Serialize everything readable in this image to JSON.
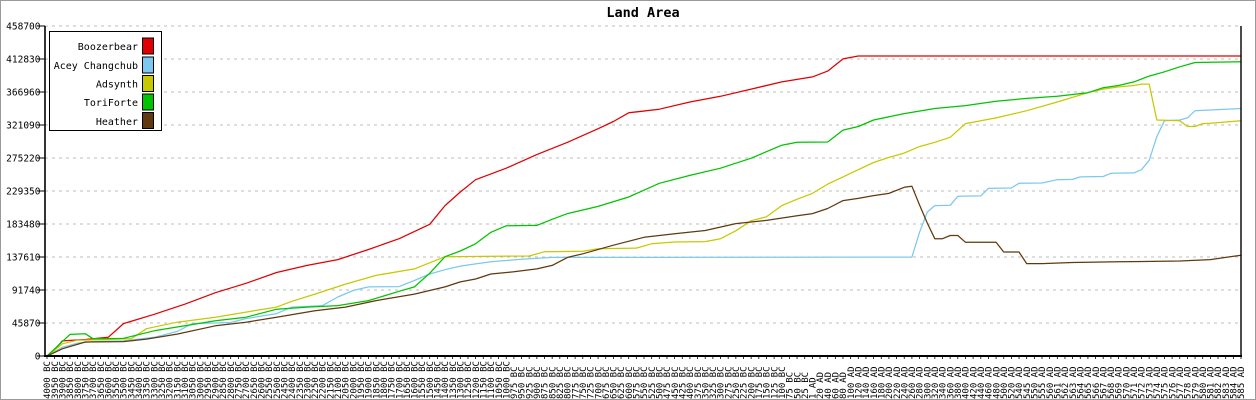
{
  "frame": {
    "background": "#ffffff",
    "border_color": "#9b9b9b"
  },
  "chart_data": {
    "type": "line",
    "title": "Land Area",
    "xlabel": "",
    "ylabel": "",
    "grid": true,
    "grid_color": "#bdbdbd",
    "legend_position": "top-left",
    "ylim": [
      0,
      458700
    ],
    "y_ticks": [
      0,
      45870,
      91740,
      137610,
      183480,
      229350,
      275220,
      321090,
      366960,
      412830,
      458700
    ],
    "x_tick_labels": [
      "4000 BC",
      "3950 BC",
      "3900 BC",
      "3850 BC",
      "3800 BC",
      "3750 BC",
      "3700 BC",
      "3650 BC",
      "3600 BC",
      "3550 BC",
      "3500 BC",
      "3450 BC",
      "3400 BC",
      "3350 BC",
      "3300 BC",
      "3250 BC",
      "3200 BC",
      "3150 BC",
      "3100 BC",
      "3050 BC",
      "3000 BC",
      "2950 BC",
      "2900 BC",
      "2850 BC",
      "2800 BC",
      "2750 BC",
      "2700 BC",
      "2650 BC",
      "2600 BC",
      "2550 BC",
      "2500 BC",
      "2450 BC",
      "2400 BC",
      "2350 BC",
      "2300 BC",
      "2250 BC",
      "2200 BC",
      "2150 BC",
      "2100 BC",
      "2050 BC",
      "2000 BC",
      "1950 BC",
      "1900 BC",
      "1850 BC",
      "1800 BC",
      "1750 BC",
      "1700 BC",
      "1650 BC",
      "1600 BC",
      "1550 BC",
      "1500 BC",
      "1450 BC",
      "1400 BC",
      "1350 BC",
      "1300 BC",
      "1250 BC",
      "1200 BC",
      "1150 BC",
      "1100 BC",
      "1050 BC",
      "1000 BC",
      "975 BC",
      "950 BC",
      "925 BC",
      "900 BC",
      "875 BC",
      "850 BC",
      "825 BC",
      "800 BC",
      "775 BC",
      "750 BC",
      "725 BC",
      "700 BC",
      "675 BC",
      "650 BC",
      "625 BC",
      "600 BC",
      "575 BC",
      "550 BC",
      "525 BC",
      "500 BC",
      "475 BC",
      "450 BC",
      "425 BC",
      "400 BC",
      "375 BC",
      "350 BC",
      "325 BC",
      "300 BC",
      "275 BC",
      "250 BC",
      "225 BC",
      "200 BC",
      "175 BC",
      "150 BC",
      "125 BC",
      "100 BC",
      "75 BC",
      "50 BC",
      "25 BC",
      "1 AD",
      "20 AD",
      "40 AD",
      "60 AD",
      "80 AD",
      "100 AD",
      "120 AD",
      "140 AD",
      "160 AD",
      "180 AD",
      "200 AD",
      "220 AD",
      "240 AD",
      "260 AD",
      "280 AD",
      "300 AD",
      "320 AD",
      "340 AD",
      "360 AD",
      "380 AD",
      "400 AD",
      "420 AD",
      "440 AD",
      "460 AD",
      "480 AD",
      "500 AD",
      "520 AD",
      "540 AD",
      "545 AD",
      "550 AD",
      "555 AD",
      "560 AD",
      "561 AD",
      "562 AD",
      "563 AD",
      "564 AD",
      "565 AD",
      "566 AD",
      "567 AD",
      "568 AD",
      "569 AD",
      "570 AD",
      "571 AD",
      "572 AD",
      "573 AD",
      "574 AD",
      "575 AD",
      "576 AD",
      "577 AD",
      "578 AD",
      "579 AD",
      "580 AD",
      "581 AD",
      "582 AD",
      "583 AD",
      "584 AD",
      "585 AD"
    ],
    "series": [
      {
        "name": "Boozerbear",
        "color": "#e10000",
        "points": [
          [
            0,
            0
          ],
          [
            1,
            9000
          ],
          [
            2,
            21000
          ],
          [
            5,
            23000
          ],
          [
            8,
            26000
          ],
          [
            10,
            45000
          ],
          [
            14,
            58000
          ],
          [
            18,
            72000
          ],
          [
            22,
            88000
          ],
          [
            26,
            101000
          ],
          [
            30,
            116000
          ],
          [
            34,
            126000
          ],
          [
            38,
            134000
          ],
          [
            42,
            148000
          ],
          [
            46,
            163000
          ],
          [
            50,
            183000
          ],
          [
            52,
            209000
          ],
          [
            54,
            228000
          ],
          [
            56,
            245000
          ],
          [
            60,
            261000
          ],
          [
            64,
            280000
          ],
          [
            68,
            297000
          ],
          [
            72,
            316000
          ],
          [
            74,
            326000
          ],
          [
            76,
            338000
          ],
          [
            80,
            343000
          ],
          [
            84,
            353000
          ],
          [
            88,
            361000
          ],
          [
            92,
            371000
          ],
          [
            96,
            381000
          ],
          [
            100,
            388000
          ],
          [
            102,
            396000
          ],
          [
            104,
            413000
          ],
          [
            106,
            417000
          ],
          [
            156,
            417000
          ]
        ]
      },
      {
        "name": "Acey Changchub",
        "color": "#7cc8f0",
        "points": [
          [
            0,
            0
          ],
          [
            1,
            6000
          ],
          [
            2,
            12000
          ],
          [
            4,
            18000
          ],
          [
            6,
            20000
          ],
          [
            10,
            21000
          ],
          [
            14,
            26000
          ],
          [
            17,
            34000
          ],
          [
            19,
            45000
          ],
          [
            24,
            46500
          ],
          [
            26,
            52000
          ],
          [
            30,
            59000
          ],
          [
            32,
            68000
          ],
          [
            36,
            70000
          ],
          [
            38,
            82000
          ],
          [
            40,
            91000
          ],
          [
            42,
            96000
          ],
          [
            46,
            96500
          ],
          [
            48,
            105000
          ],
          [
            50,
            114000
          ],
          [
            52,
            120000
          ],
          [
            54,
            125000
          ],
          [
            56,
            128000
          ],
          [
            58,
            131000
          ],
          [
            62,
            134500
          ],
          [
            66,
            137000
          ],
          [
            113,
            137500
          ],
          [
            114,
            172000
          ],
          [
            115,
            200000
          ],
          [
            116,
            209000
          ],
          [
            118,
            209500
          ],
          [
            119,
            222000
          ],
          [
            122,
            222500
          ],
          [
            123,
            233000
          ],
          [
            126,
            233500
          ],
          [
            127,
            240000
          ],
          [
            130,
            240500
          ],
          [
            132,
            245000
          ],
          [
            134,
            245500
          ],
          [
            135,
            249000
          ],
          [
            138,
            249500
          ],
          [
            139,
            254000
          ],
          [
            142,
            254500
          ],
          [
            143,
            259000
          ],
          [
            144,
            272000
          ],
          [
            145,
            305000
          ],
          [
            146,
            327000
          ],
          [
            148,
            328000
          ],
          [
            149,
            331000
          ],
          [
            150,
            341000
          ],
          [
            156,
            344000
          ]
        ]
      },
      {
        "name": "Adsynth",
        "color": "#c8c800",
        "points": [
          [
            0,
            0
          ],
          [
            1,
            8000
          ],
          [
            2,
            17000
          ],
          [
            4,
            22000
          ],
          [
            8,
            23000
          ],
          [
            11,
            24000
          ],
          [
            13,
            38000
          ],
          [
            17,
            47000
          ],
          [
            22,
            54000
          ],
          [
            26,
            61000
          ],
          [
            30,
            68000
          ],
          [
            32,
            76000
          ],
          [
            35,
            86000
          ],
          [
            39,
            100000
          ],
          [
            43,
            112000
          ],
          [
            48,
            121000
          ],
          [
            52,
            138000
          ],
          [
            63,
            139000
          ],
          [
            65,
            145000
          ],
          [
            70,
            145500
          ],
          [
            72,
            149000
          ],
          [
            77,
            150000
          ],
          [
            79,
            156000
          ],
          [
            82,
            158500
          ],
          [
            86,
            159000
          ],
          [
            88,
            163000
          ],
          [
            90,
            174000
          ],
          [
            92,
            188000
          ],
          [
            94,
            193500
          ],
          [
            96,
            209000
          ],
          [
            98,
            218000
          ],
          [
            100,
            226000
          ],
          [
            102,
            239000
          ],
          [
            104,
            249000
          ],
          [
            106,
            259000
          ],
          [
            108,
            269000
          ],
          [
            110,
            276000
          ],
          [
            112,
            282000
          ],
          [
            114,
            291000
          ],
          [
            116,
            297000
          ],
          [
            118,
            304000
          ],
          [
            120,
            323000
          ],
          [
            124,
            331000
          ],
          [
            128,
            341000
          ],
          [
            132,
            353000
          ],
          [
            136,
            366000
          ],
          [
            138,
            371000
          ],
          [
            140,
            374000
          ],
          [
            142,
            376000
          ],
          [
            143,
            378000
          ],
          [
            144,
            378000
          ],
          [
            145,
            328000
          ],
          [
            148,
            327000
          ],
          [
            149,
            319000
          ],
          [
            150,
            319000
          ],
          [
            151,
            323000
          ],
          [
            152,
            323500
          ],
          [
            156,
            327000
          ]
        ]
      },
      {
        "name": "ToriForte",
        "color": "#00c400",
        "points": [
          [
            0,
            0
          ],
          [
            1,
            10000
          ],
          [
            2,
            20000
          ],
          [
            3,
            30000
          ],
          [
            5,
            31000
          ],
          [
            6,
            24000
          ],
          [
            10,
            24500
          ],
          [
            14,
            35000
          ],
          [
            18,
            42000
          ],
          [
            22,
            49000
          ],
          [
            26,
            54000
          ],
          [
            30,
            65000
          ],
          [
            34,
            68000
          ],
          [
            38,
            70000
          ],
          [
            42,
            77000
          ],
          [
            46,
            90000
          ],
          [
            48,
            96000
          ],
          [
            50,
            115000
          ],
          [
            52,
            138000
          ],
          [
            54,
            146000
          ],
          [
            56,
            156000
          ],
          [
            58,
            172000
          ],
          [
            60,
            181000
          ],
          [
            64,
            181500
          ],
          [
            66,
            190000
          ],
          [
            68,
            198000
          ],
          [
            72,
            208000
          ],
          [
            76,
            221000
          ],
          [
            80,
            240000
          ],
          [
            84,
            251000
          ],
          [
            88,
            261000
          ],
          [
            92,
            275000
          ],
          [
            96,
            293000
          ],
          [
            98,
            297000
          ],
          [
            102,
            297500
          ],
          [
            104,
            314000
          ],
          [
            106,
            319000
          ],
          [
            108,
            328000
          ],
          [
            112,
            337000
          ],
          [
            116,
            344000
          ],
          [
            120,
            348000
          ],
          [
            124,
            354000
          ],
          [
            128,
            358000
          ],
          [
            132,
            361000
          ],
          [
            136,
            366000
          ],
          [
            138,
            373000
          ],
          [
            140,
            376000
          ],
          [
            142,
            381000
          ],
          [
            144,
            389000
          ],
          [
            146,
            395000
          ],
          [
            148,
            402000
          ],
          [
            150,
            408000
          ],
          [
            156,
            409000
          ]
        ]
      },
      {
        "name": "Heather",
        "color": "#61390f",
        "points": [
          [
            0,
            0
          ],
          [
            1,
            5000
          ],
          [
            2,
            10000
          ],
          [
            5,
            19500
          ],
          [
            10,
            20000
          ],
          [
            13,
            23500
          ],
          [
            17,
            30500
          ],
          [
            22,
            42000
          ],
          [
            26,
            47000
          ],
          [
            30,
            54000
          ],
          [
            35,
            63000
          ],
          [
            39,
            68000
          ],
          [
            43,
            77000
          ],
          [
            48,
            86000
          ],
          [
            52,
            96000
          ],
          [
            54,
            103000
          ],
          [
            56,
            107000
          ],
          [
            58,
            114000
          ],
          [
            61,
            117000
          ],
          [
            64,
            121000
          ],
          [
            66,
            126000
          ],
          [
            68,
            137000
          ],
          [
            70,
            142000
          ],
          [
            74,
            154000
          ],
          [
            78,
            165000
          ],
          [
            82,
            170000
          ],
          [
            86,
            174500
          ],
          [
            90,
            184000
          ],
          [
            94,
            188500
          ],
          [
            98,
            195000
          ],
          [
            100,
            198000
          ],
          [
            102,
            205000
          ],
          [
            104,
            216000
          ],
          [
            106,
            219000
          ],
          [
            108,
            223000
          ],
          [
            110,
            226000
          ],
          [
            112,
            234500
          ],
          [
            113,
            236000
          ],
          [
            114,
            210000
          ],
          [
            115,
            185000
          ],
          [
            116,
            163000
          ],
          [
            117,
            163000
          ],
          [
            118,
            167500
          ],
          [
            119,
            167500
          ],
          [
            120,
            158000
          ],
          [
            124,
            158000
          ],
          [
            125,
            144500
          ],
          [
            127,
            144500
          ],
          [
            128,
            128500
          ],
          [
            130,
            128500
          ],
          [
            134,
            130000
          ],
          [
            140,
            131000
          ],
          [
            148,
            132000
          ],
          [
            152,
            134000
          ],
          [
            154,
            137000
          ],
          [
            156,
            140000
          ]
        ]
      }
    ]
  }
}
